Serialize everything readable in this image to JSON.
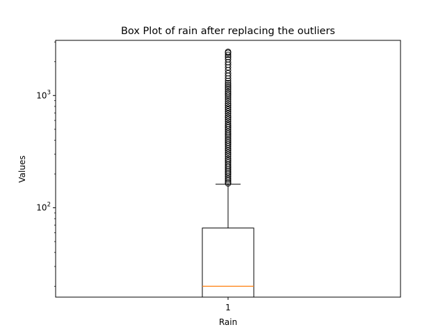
{
  "chart_data": {
    "type": "box",
    "title": "Box Plot of rain after replacing the outliers",
    "xlabel": "Rain",
    "ylabel": "Values",
    "yscale": "log",
    "ylim": [
      16,
      3100
    ],
    "grid": false,
    "categories": [
      "1"
    ],
    "box": {
      "q1": 16,
      "median": 20,
      "q3": 66,
      "whisker_low": 16,
      "whisker_high": 162
    },
    "y_ticks": [
      {
        "base": "10",
        "exp": "3",
        "value": 1000
      },
      {
        "base": "10",
        "exp": "2",
        "value": 100
      }
    ],
    "outliers": [
      165,
      170,
      176,
      182,
      190,
      198,
      205,
      212,
      220,
      228,
      236,
      245,
      255,
      265,
      275,
      288,
      300,
      312,
      325,
      338,
      352,
      366,
      380,
      395,
      410,
      428,
      445,
      462,
      480,
      500,
      520,
      540,
      560,
      585,
      610,
      635,
      660,
      690,
      720,
      750,
      780,
      815,
      850,
      890,
      930,
      970,
      1010,
      1050,
      1090,
      1140,
      1190,
      1240,
      1290,
      1350,
      1420,
      1500,
      1580,
      1680,
      1780,
      1880,
      1980,
      2100,
      2200,
      2300,
      2400,
      2450
    ],
    "colors": {
      "box": "#000000",
      "median": "#ff7f0e",
      "outlier_marker": "#000000"
    }
  }
}
